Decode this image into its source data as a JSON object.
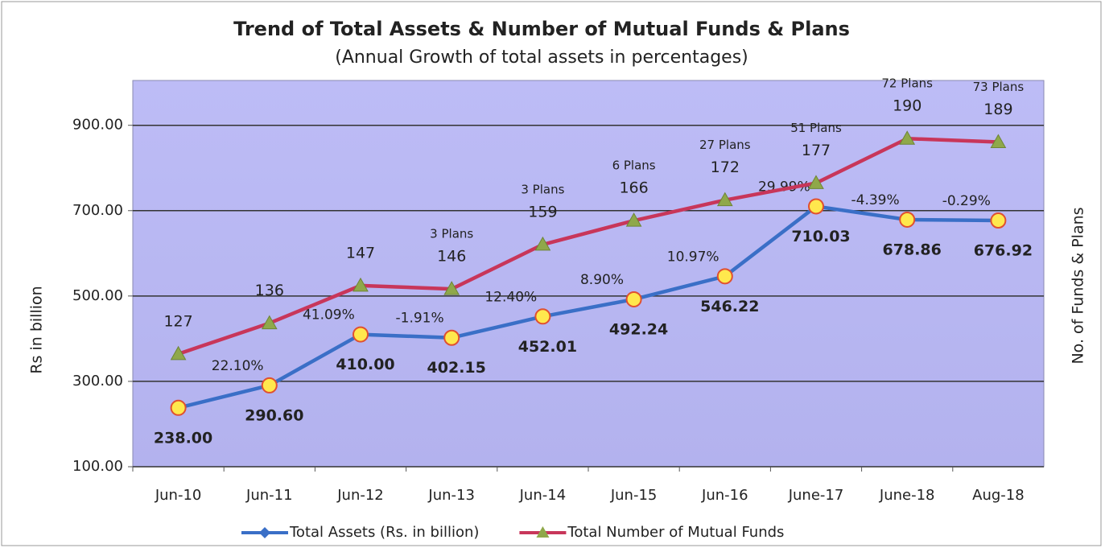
{
  "chart_data": {
    "type": "line",
    "title": "Trend of Total Assets & Number of Mutual Funds & Plans",
    "subtitle": "(Annual Growth of total assets in percentages)",
    "ylabel": "Rs  in billion",
    "y2label": "No.  of  Funds  &  Plans",
    "categories": [
      "Jun-10",
      "Jun-11",
      "Jun-12",
      "Jun-13",
      "Jun-14",
      "Jun-15",
      "Jun-16",
      "June-17",
      "June-18",
      "Aug-18"
    ],
    "ylim": [
      100,
      1005
    ],
    "yticks": [
      {
        "value": 100,
        "label": "100.00"
      },
      {
        "value": 300,
        "label": "300.00"
      },
      {
        "value": 500,
        "label": "500.00"
      },
      {
        "value": 700,
        "label": "700.00"
      },
      {
        "value": 900,
        "label": "900.00"
      }
    ],
    "y2lim": [
      94,
      207
    ],
    "grid": true,
    "series": [
      {
        "name": "Total Assets (Rs. in billion)",
        "color": "#3a6fc7",
        "values": [
          238.0,
          290.6,
          410.0,
          402.15,
          452.01,
          492.24,
          546.22,
          710.03,
          678.86,
          676.92
        ],
        "value_labels": [
          "238.00",
          "290.60",
          "410.00",
          "402.15",
          "452.01",
          "492.24",
          "546.22",
          "710.03",
          "678.86",
          "676.92"
        ],
        "growth_labels": [
          null,
          {
            "text": "22.10%",
            "color": "#222222"
          },
          {
            "text": "41.09%",
            "color": "#222222"
          },
          {
            "text": "-1.91%",
            "color": "#d23a3a"
          },
          {
            "text": "12.40%",
            "color": "#222222"
          },
          {
            "text": "8.90%",
            "color": "#222222"
          },
          {
            "text": "10.97%",
            "color": "#222222"
          },
          {
            "text": "29.99%",
            "color": "#222222"
          },
          {
            "text": "-4.39%",
            "color": "#d23a3a"
          },
          {
            "text": "-0.29%",
            "color": "#222222"
          }
        ]
      },
      {
        "name": "Total Number of Mutual Funds",
        "color": "#c8365a",
        "axis": "y2",
        "values": [
          127,
          136,
          147,
          146,
          159,
          166,
          172,
          177,
          190,
          189
        ],
        "plan_labels": [
          null,
          null,
          null,
          "3 Plans",
          "3 Plans",
          "6 Plans",
          "27 Plans",
          "51 Plans",
          "72 Plans",
          "73 Plans"
        ]
      }
    ]
  }
}
